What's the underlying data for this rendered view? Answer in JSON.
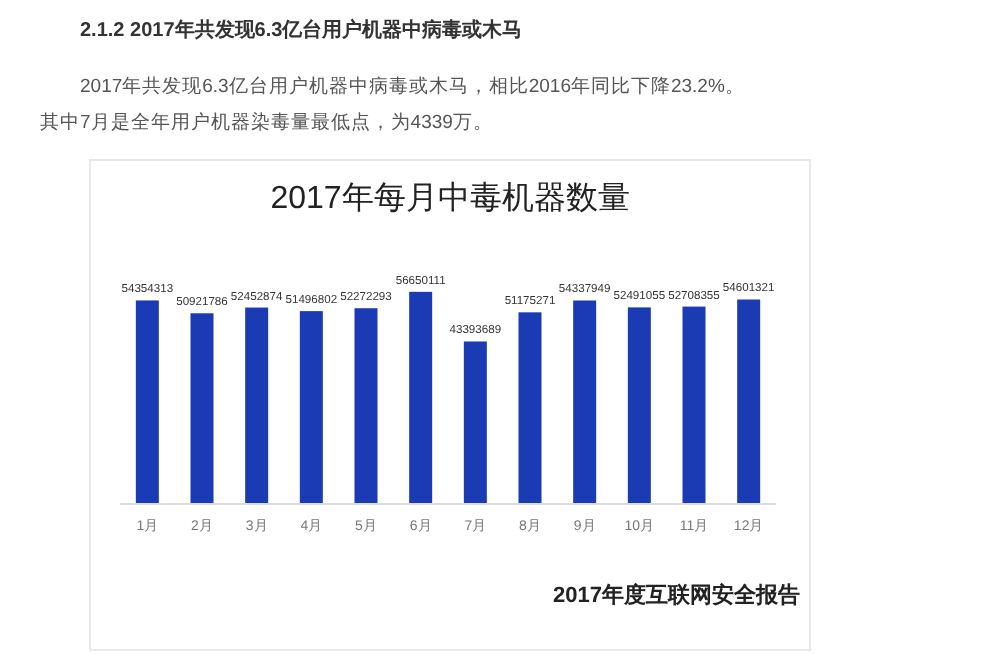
{
  "chart_data": {
    "type": "bar",
    "title": "2017年每月中毒机器数量",
    "annotations": [
      "2.1.2 2017年共发现6.3亿台用户机器中病毒或木马",
      "2017年共发现6.3亿台用户机器中病毒或木马，相比2016年同比下降23.2%。",
      "其中7月是全年用户机器染毒量最低点，为4339万。",
      "2017年度互联网安全报告"
    ],
    "categories": [
      "1月",
      "2月",
      "3月",
      "4月",
      "5月",
      "6月",
      "7月",
      "8月",
      "9月",
      "10月",
      "11月",
      "12月"
    ],
    "values": [
      54354313,
      50921786,
      52452874,
      51496802,
      52272293,
      56650111,
      43393689,
      51175271,
      54337949,
      52491055,
      52708355,
      54601321
    ],
    "color": "#1a3bb3",
    "data_labels": true
  }
}
